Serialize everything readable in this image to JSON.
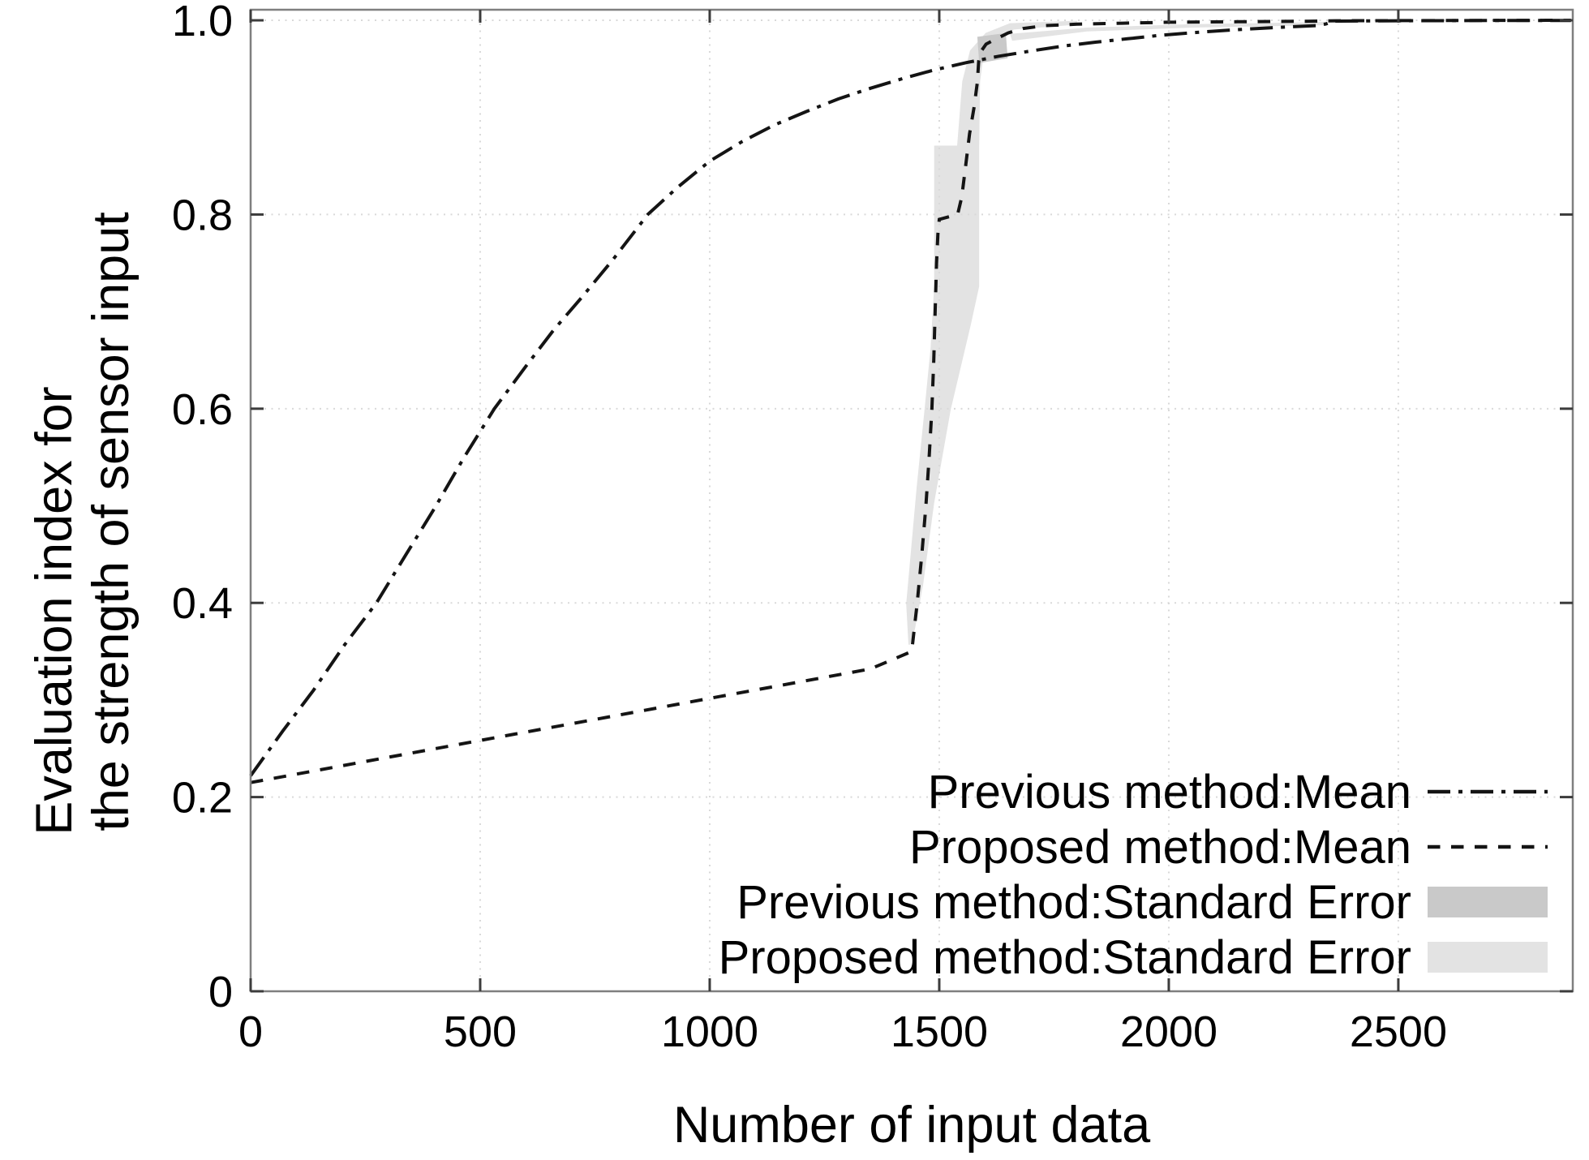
{
  "figure": {
    "background": "#ffffff",
    "border_color": "#7f7f7f",
    "grid_color": "#d9d9d9",
    "tick_color": "#3c3c3c",
    "line_color": "#141414",
    "prev_se_color": "#c9c9c9",
    "prop_se_color": "#e3e3e3"
  },
  "chart_data": {
    "type": "line",
    "title": "",
    "xlabel": "Number of input data",
    "ylabel_line1": "Evaluation index for",
    "ylabel_line2": "the strength of sensor input",
    "xlim": [
      0,
      2880
    ],
    "ylim": [
      0,
      1.0109
    ],
    "x_ticks": [
      0,
      500,
      1000,
      1500,
      2000,
      2500
    ],
    "x_tick_labels": [
      "0",
      "500",
      "1000",
      "1500",
      "2000",
      "2500"
    ],
    "y_ticks": [
      0,
      0.2,
      0.4,
      0.6,
      0.8,
      1.0
    ],
    "y_tick_labels": [
      "0",
      "0.2",
      "0.4",
      "0.6",
      "0.8",
      "1.0"
    ],
    "grid": "dotted",
    "legend_position": "lower right",
    "series": [
      {
        "name": "Previous method:Mean",
        "kind": "line",
        "style": "dashdot",
        "color": "#141414",
        "points": [
          [
            0,
            0.222
          ],
          [
            70,
            0.268
          ],
          [
            137,
            0.31
          ],
          [
            205,
            0.357
          ],
          [
            274,
            0.4
          ],
          [
            340,
            0.451
          ],
          [
            400,
            0.497
          ],
          [
            465,
            0.55
          ],
          [
            531,
            0.6
          ],
          [
            600,
            0.644
          ],
          [
            660,
            0.681
          ],
          [
            720,
            0.714
          ],
          [
            790,
            0.754
          ],
          [
            865,
            0.8
          ],
          [
            930,
            0.828
          ],
          [
            1000,
            0.855
          ],
          [
            1070,
            0.875
          ],
          [
            1140,
            0.892
          ],
          [
            1210,
            0.906
          ],
          [
            1280,
            0.919
          ],
          [
            1350,
            0.93
          ],
          [
            1420,
            0.94
          ],
          [
            1490,
            0.949
          ],
          [
            1560,
            0.9565
          ],
          [
            1630,
            0.963
          ],
          [
            1700,
            0.9685
          ],
          [
            1770,
            0.9735
          ],
          [
            1840,
            0.9775
          ],
          [
            1910,
            0.981
          ],
          [
            1980,
            0.9845
          ],
          [
            2050,
            0.9872
          ],
          [
            2120,
            0.9895
          ],
          [
            2190,
            0.9915
          ],
          [
            2260,
            0.9932
          ],
          [
            2320,
            0.9945
          ],
          [
            2342,
            0.9962
          ],
          [
            2358,
            0.9992
          ],
          [
            2500,
            0.9995
          ],
          [
            2700,
            0.9998
          ],
          [
            2876,
            0.9999
          ]
        ]
      },
      {
        "name": "Proposed method:Mean",
        "kind": "line",
        "style": "dashed",
        "color": "#141414",
        "points": [
          [
            0,
            0.215
          ],
          [
            150,
            0.228
          ],
          [
            300,
            0.241
          ],
          [
            450,
            0.254
          ],
          [
            600,
            0.267
          ],
          [
            750,
            0.28
          ],
          [
            900,
            0.293
          ],
          [
            1050,
            0.306
          ],
          [
            1200,
            0.319
          ],
          [
            1350,
            0.332
          ],
          [
            1440,
            0.35
          ],
          [
            1452,
            0.4
          ],
          [
            1462,
            0.45
          ],
          [
            1471,
            0.5
          ],
          [
            1478,
            0.55
          ],
          [
            1484,
            0.6
          ],
          [
            1488,
            0.65
          ],
          [
            1491,
            0.7
          ],
          [
            1494,
            0.75
          ],
          [
            1497,
            0.78
          ],
          [
            1500,
            0.795
          ],
          [
            1540,
            0.8
          ],
          [
            1549,
            0.818
          ],
          [
            1557,
            0.848
          ],
          [
            1566,
            0.883
          ],
          [
            1576,
            0.911
          ],
          [
            1583,
            0.936
          ],
          [
            1586,
            0.958
          ],
          [
            1591,
            0.968
          ],
          [
            1602,
            0.9755
          ],
          [
            1616,
            0.979
          ],
          [
            1650,
            0.987
          ],
          [
            1682,
            0.9915
          ],
          [
            1730,
            0.9945
          ],
          [
            1800,
            0.996
          ],
          [
            1900,
            0.997
          ],
          [
            2000,
            0.998
          ],
          [
            2150,
            0.9985
          ],
          [
            2300,
            0.999
          ],
          [
            2365,
            0.9995
          ],
          [
            2600,
            0.9998
          ],
          [
            2876,
            1.0
          ]
        ]
      },
      {
        "name": "Previous method:Standard Error",
        "kind": "band",
        "style": "band",
        "color": "#c9c9c9",
        "polygons": [
          [
            [
              1583,
              0.983
            ],
            [
              1645,
              0.9868
            ],
            [
              1649,
              0.961
            ],
            [
              1587,
              0.956
            ]
          ]
        ]
      },
      {
        "name": "Proposed method:Standard Error",
        "kind": "band",
        "style": "band",
        "color": "#e3e3e3",
        "polygons": [
          [
            [
              1433,
              0.357
            ],
            [
              1428,
              0.399
            ],
            [
              1451,
              0.52
            ],
            [
              1468,
              0.599
            ],
            [
              1481,
              0.662
            ],
            [
              1489,
              0.726
            ],
            [
              1489,
              0.871
            ],
            [
              1539,
              0.871
            ],
            [
              1550,
              0.937
            ],
            [
              1567,
              0.969
            ],
            [
              1601,
              0.987
            ],
            [
              1654,
              0.997
            ],
            [
              1800,
              0.9995
            ],
            [
              1800,
              0.9955
            ],
            [
              1663,
              0.9905
            ],
            [
              1613,
              0.981
            ],
            [
              1596,
              0.962
            ],
            [
              1589,
              0.937
            ],
            [
              1587,
              0.871
            ],
            [
              1587,
              0.726
            ],
            [
              1569,
              0.687
            ],
            [
              1525,
              0.599
            ],
            [
              1489,
              0.503
            ],
            [
              1465,
              0.419
            ],
            [
              1447,
              0.373
            ],
            [
              1436,
              0.357
            ]
          ],
          [
            [
              1654,
              0.986
            ],
            [
              1822,
              0.9925
            ],
            [
              2052,
              0.996
            ],
            [
              2317,
              0.998
            ],
            [
              2344,
              0.9985
            ],
            [
              2344,
              0.995
            ],
            [
              2052,
              0.9925
            ],
            [
              1822,
              0.9885
            ],
            [
              1659,
              0.979
            ]
          ]
        ]
      }
    ]
  }
}
